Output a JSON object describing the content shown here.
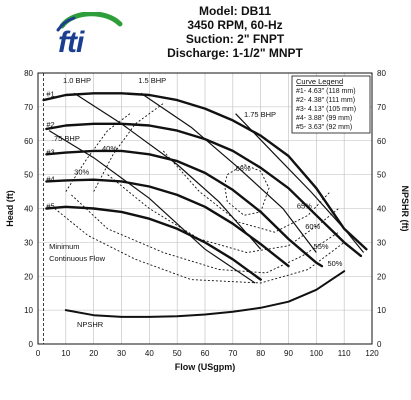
{
  "header": {
    "model": "Model: DB11",
    "speed": "3450 RPM, 60-Hz",
    "suction": "Suction: 2\" FNPT",
    "discharge": "Discharge: 1-1/2\" MNPT"
  },
  "logo": {
    "text": "fti",
    "primary_color": "#1b3e8f",
    "accent_color": "#2e9e3a"
  },
  "chart_data": {
    "type": "line",
    "xlabel": "Flow (USgpm)",
    "ylabel": "Head (ft)",
    "y2label": "NPSHR (ft)",
    "xlim": [
      0,
      120
    ],
    "ylim": [
      0,
      80
    ],
    "xticks": [
      "0",
      "10",
      "20",
      "30",
      "40",
      "50",
      "60",
      "70",
      "80",
      "90",
      "100",
      "110",
      "120"
    ],
    "yticks": [
      "0",
      "10",
      "20",
      "30",
      "40",
      "50",
      "60",
      "70",
      "80"
    ],
    "grid": true,
    "legend": {
      "title": "Curve Legend",
      "placement": "top-right",
      "entries": [
        "#1- 4.63\" (118 mm)",
        "#2- 4.38\" (111 mm)",
        "#3- 4.13\" (105 mm)",
        "#4- 3.88\" (99 mm)",
        "#5- 3.63\" (92 mm)"
      ]
    },
    "series": [
      {
        "name": "#1",
        "points": [
          [
            2,
            72
          ],
          [
            10,
            73.5
          ],
          [
            20,
            74
          ],
          [
            30,
            74
          ],
          [
            40,
            73.5
          ],
          [
            50,
            72
          ],
          [
            60,
            69.5
          ],
          [
            70,
            66
          ],
          [
            80,
            61.5
          ],
          [
            90,
            55.5
          ],
          [
            100,
            46
          ],
          [
            110,
            34
          ],
          [
            118,
            28
          ]
        ]
      },
      {
        "name": "#2",
        "points": [
          [
            3,
            63.5
          ],
          [
            10,
            64.5
          ],
          [
            20,
            65
          ],
          [
            30,
            65
          ],
          [
            40,
            64.5
          ],
          [
            50,
            63
          ],
          [
            60,
            60.5
          ],
          [
            70,
            57
          ],
          [
            80,
            52
          ],
          [
            90,
            46
          ],
          [
            100,
            38
          ],
          [
            110,
            30
          ],
          [
            116,
            26
          ]
        ]
      },
      {
        "name": "#3",
        "points": [
          [
            3,
            56
          ],
          [
            10,
            56.5
          ],
          [
            20,
            57
          ],
          [
            30,
            57
          ],
          [
            40,
            56
          ],
          [
            50,
            54
          ],
          [
            60,
            50.5
          ],
          [
            70,
            45.5
          ],
          [
            80,
            39
          ],
          [
            90,
            31
          ],
          [
            100,
            24
          ],
          [
            102,
            23
          ]
        ]
      },
      {
        "name": "#4",
        "points": [
          [
            3,
            48
          ],
          [
            10,
            48.3
          ],
          [
            20,
            48.5
          ],
          [
            30,
            48
          ],
          [
            40,
            46.5
          ],
          [
            50,
            44
          ],
          [
            60,
            40.5
          ],
          [
            70,
            35.5
          ],
          [
            80,
            29.5
          ],
          [
            90,
            23
          ]
        ]
      },
      {
        "name": "#5",
        "points": [
          [
            3,
            40
          ],
          [
            10,
            40.5
          ],
          [
            20,
            40
          ],
          [
            30,
            39
          ],
          [
            40,
            37
          ],
          [
            50,
            34
          ],
          [
            60,
            30
          ],
          [
            70,
            25
          ],
          [
            80,
            19
          ]
        ]
      },
      {
        "name": "NPSHR",
        "points": [
          [
            10,
            10
          ],
          [
            20,
            8.5
          ],
          [
            30,
            8
          ],
          [
            40,
            8
          ],
          [
            50,
            8.2
          ],
          [
            60,
            8.7
          ],
          [
            70,
            9.5
          ],
          [
            80,
            10.7
          ],
          [
            90,
            12.5
          ],
          [
            100,
            16
          ],
          [
            110,
            21.5
          ]
        ]
      }
    ],
    "efficiency_contours": [
      {
        "label": "30%",
        "points": [
          [
            10,
            45
          ],
          [
            17,
            54
          ],
          [
            25,
            63
          ],
          [
            33,
            68
          ]
        ]
      },
      {
        "label": "40%",
        "points": [
          [
            20,
            45
          ],
          [
            27,
            56
          ],
          [
            35,
            65
          ],
          [
            45,
            71
          ]
        ]
      },
      {
        "label": "50%",
        "points": [
          [
            6,
            40
          ],
          [
            18,
            32
          ],
          [
            35,
            25
          ],
          [
            55,
            19
          ],
          [
            80,
            18
          ],
          [
            97,
            22
          ],
          [
            110,
            30
          ]
        ]
      },
      {
        "label": "55%",
        "points": [
          [
            12,
            44
          ],
          [
            25,
            34
          ],
          [
            45,
            27
          ],
          [
            65,
            22
          ],
          [
            82,
            21
          ],
          [
            95,
            26
          ],
          [
            108,
            33
          ]
        ]
      },
      {
        "label": "60%",
        "points": [
          [
            25,
            50
          ],
          [
            40,
            40
          ],
          [
            58,
            31
          ],
          [
            75,
            27
          ],
          [
            90,
            29
          ],
          [
            102,
            36
          ],
          [
            108,
            40
          ]
        ]
      },
      {
        "label": "65%",
        "points": [
          [
            45,
            57
          ],
          [
            58,
            45
          ],
          [
            72,
            36
          ],
          [
            85,
            33
          ],
          [
            97,
            38
          ],
          [
            105,
            45
          ]
        ]
      },
      {
        "label": "68%",
        "points": [
          [
            68,
            50
          ],
          [
            74,
            53
          ],
          [
            80,
            51
          ],
          [
            83,
            46
          ],
          [
            80,
            39
          ],
          [
            74,
            38
          ],
          [
            68,
            42
          ],
          [
            67,
            47
          ],
          [
            68,
            50
          ]
        ]
      }
    ],
    "bhp_lines": [
      {
        "label": "1.0 BHP",
        "points": [
          [
            13,
            74
          ],
          [
            30,
            65
          ],
          [
            50,
            53
          ],
          [
            65,
            42
          ],
          [
            80,
            28
          ]
        ]
      },
      {
        "label": "1.5 BHP",
        "points": [
          [
            37,
            74
          ],
          [
            55,
            64
          ],
          [
            72,
            52
          ],
          [
            88,
            40
          ],
          [
            100,
            27
          ]
        ]
      },
      {
        "label": "1.75 BHP",
        "points": [
          [
            71,
            68
          ],
          [
            85,
            56
          ],
          [
            98,
            45
          ],
          [
            110,
            34
          ],
          [
            117,
            27
          ]
        ]
      },
      {
        "label": ".75 BHP",
        "points": [
          [
            4,
            63
          ],
          [
            20,
            55
          ],
          [
            40,
            43
          ],
          [
            60,
            28
          ],
          [
            78,
            18
          ]
        ]
      }
    ],
    "annotations": [
      {
        "text": "#1",
        "at": [
          3,
          73
        ]
      },
      {
        "text": "#2",
        "at": [
          3,
          64
        ]
      },
      {
        "text": "#3",
        "at": [
          3,
          56
        ]
      },
      {
        "text": "#4",
        "at": [
          3,
          48
        ]
      },
      {
        "text": "#5",
        "at": [
          3,
          40
        ]
      },
      {
        "text": "1.0 BHP",
        "at": [
          9,
          77
        ]
      },
      {
        "text": "1.5 BHP",
        "at": [
          36,
          77
        ]
      },
      {
        "text": "1.75 BHP",
        "at": [
          74,
          67
        ]
      },
      {
        "text": ".75 BHP",
        "at": [
          5,
          60
        ]
      },
      {
        "text": "30%",
        "at": [
          13,
          50
        ]
      },
      {
        "text": "40%",
        "at": [
          23,
          57
        ]
      },
      {
        "text": "68%",
        "at": [
          71,
          51
        ]
      },
      {
        "text": "65%",
        "at": [
          93,
          40
        ]
      },
      {
        "text": "60%",
        "at": [
          96,
          34
        ]
      },
      {
        "text": "55%",
        "at": [
          99,
          28
        ]
      },
      {
        "text": "50%",
        "at": [
          104,
          23
        ]
      },
      {
        "text": "NPSHR",
        "at": [
          14,
          5
        ]
      },
      {
        "text": "Minimum",
        "at": [
          4,
          28
        ]
      },
      {
        "text": "Continuous Flow",
        "at": [
          4,
          24.5
        ]
      }
    ],
    "min_flow_x": 2
  }
}
